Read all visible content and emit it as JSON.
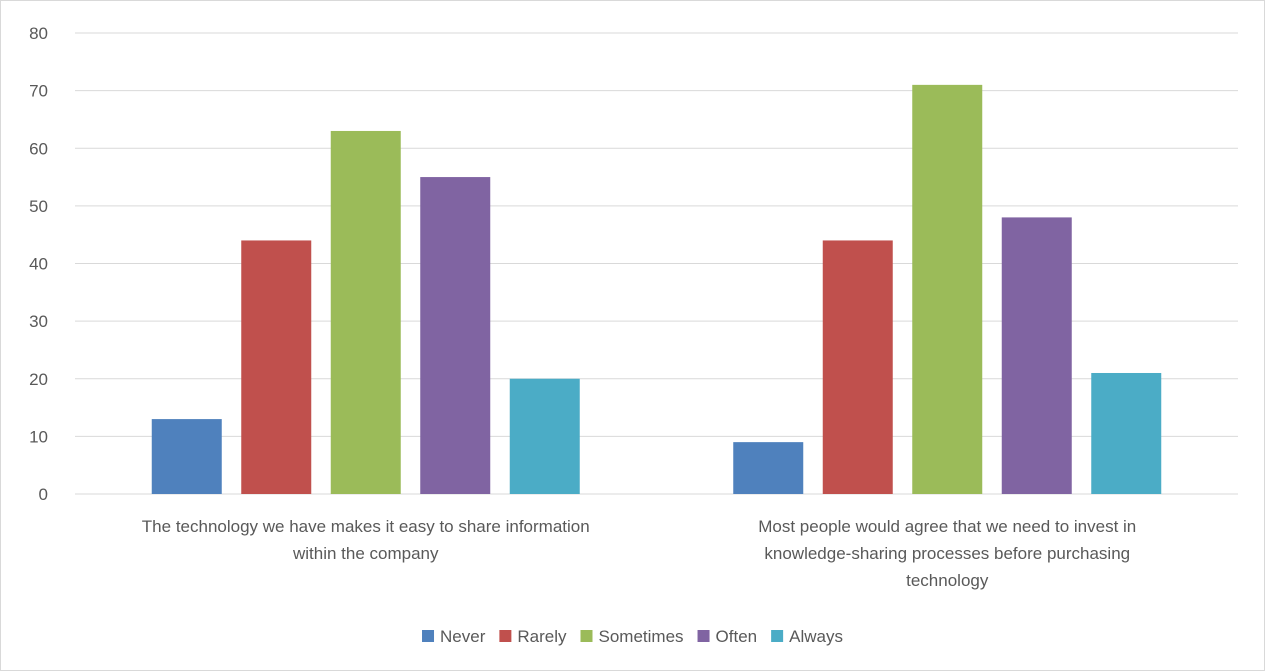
{
  "chart_data": {
    "type": "bar",
    "title": "",
    "xlabel": "",
    "ylabel": "",
    "ylim": [
      0,
      80
    ],
    "y_ticks": [
      0,
      10,
      20,
      30,
      40,
      50,
      60,
      70,
      80
    ],
    "grid": true,
    "legend_position": "bottom",
    "categories": [
      [
        "The technology we have makes it easy to share information",
        "within the company"
      ],
      [
        "Most people would agree that we need to invest in",
        "knowledge-sharing processes before purchasing",
        "technology"
      ]
    ],
    "series": [
      {
        "name": "Never",
        "color": "#4f81bd",
        "values": [
          13,
          9
        ]
      },
      {
        "name": "Rarely",
        "color": "#c0504d",
        "values": [
          44,
          44
        ]
      },
      {
        "name": "Sometimes",
        "color": "#9bbb59",
        "values": [
          63,
          71
        ]
      },
      {
        "name": "Often",
        "color": "#8064a2",
        "values": [
          55,
          48
        ]
      },
      {
        "name": "Always",
        "color": "#4bacc6",
        "values": [
          20,
          21
        ]
      }
    ]
  }
}
